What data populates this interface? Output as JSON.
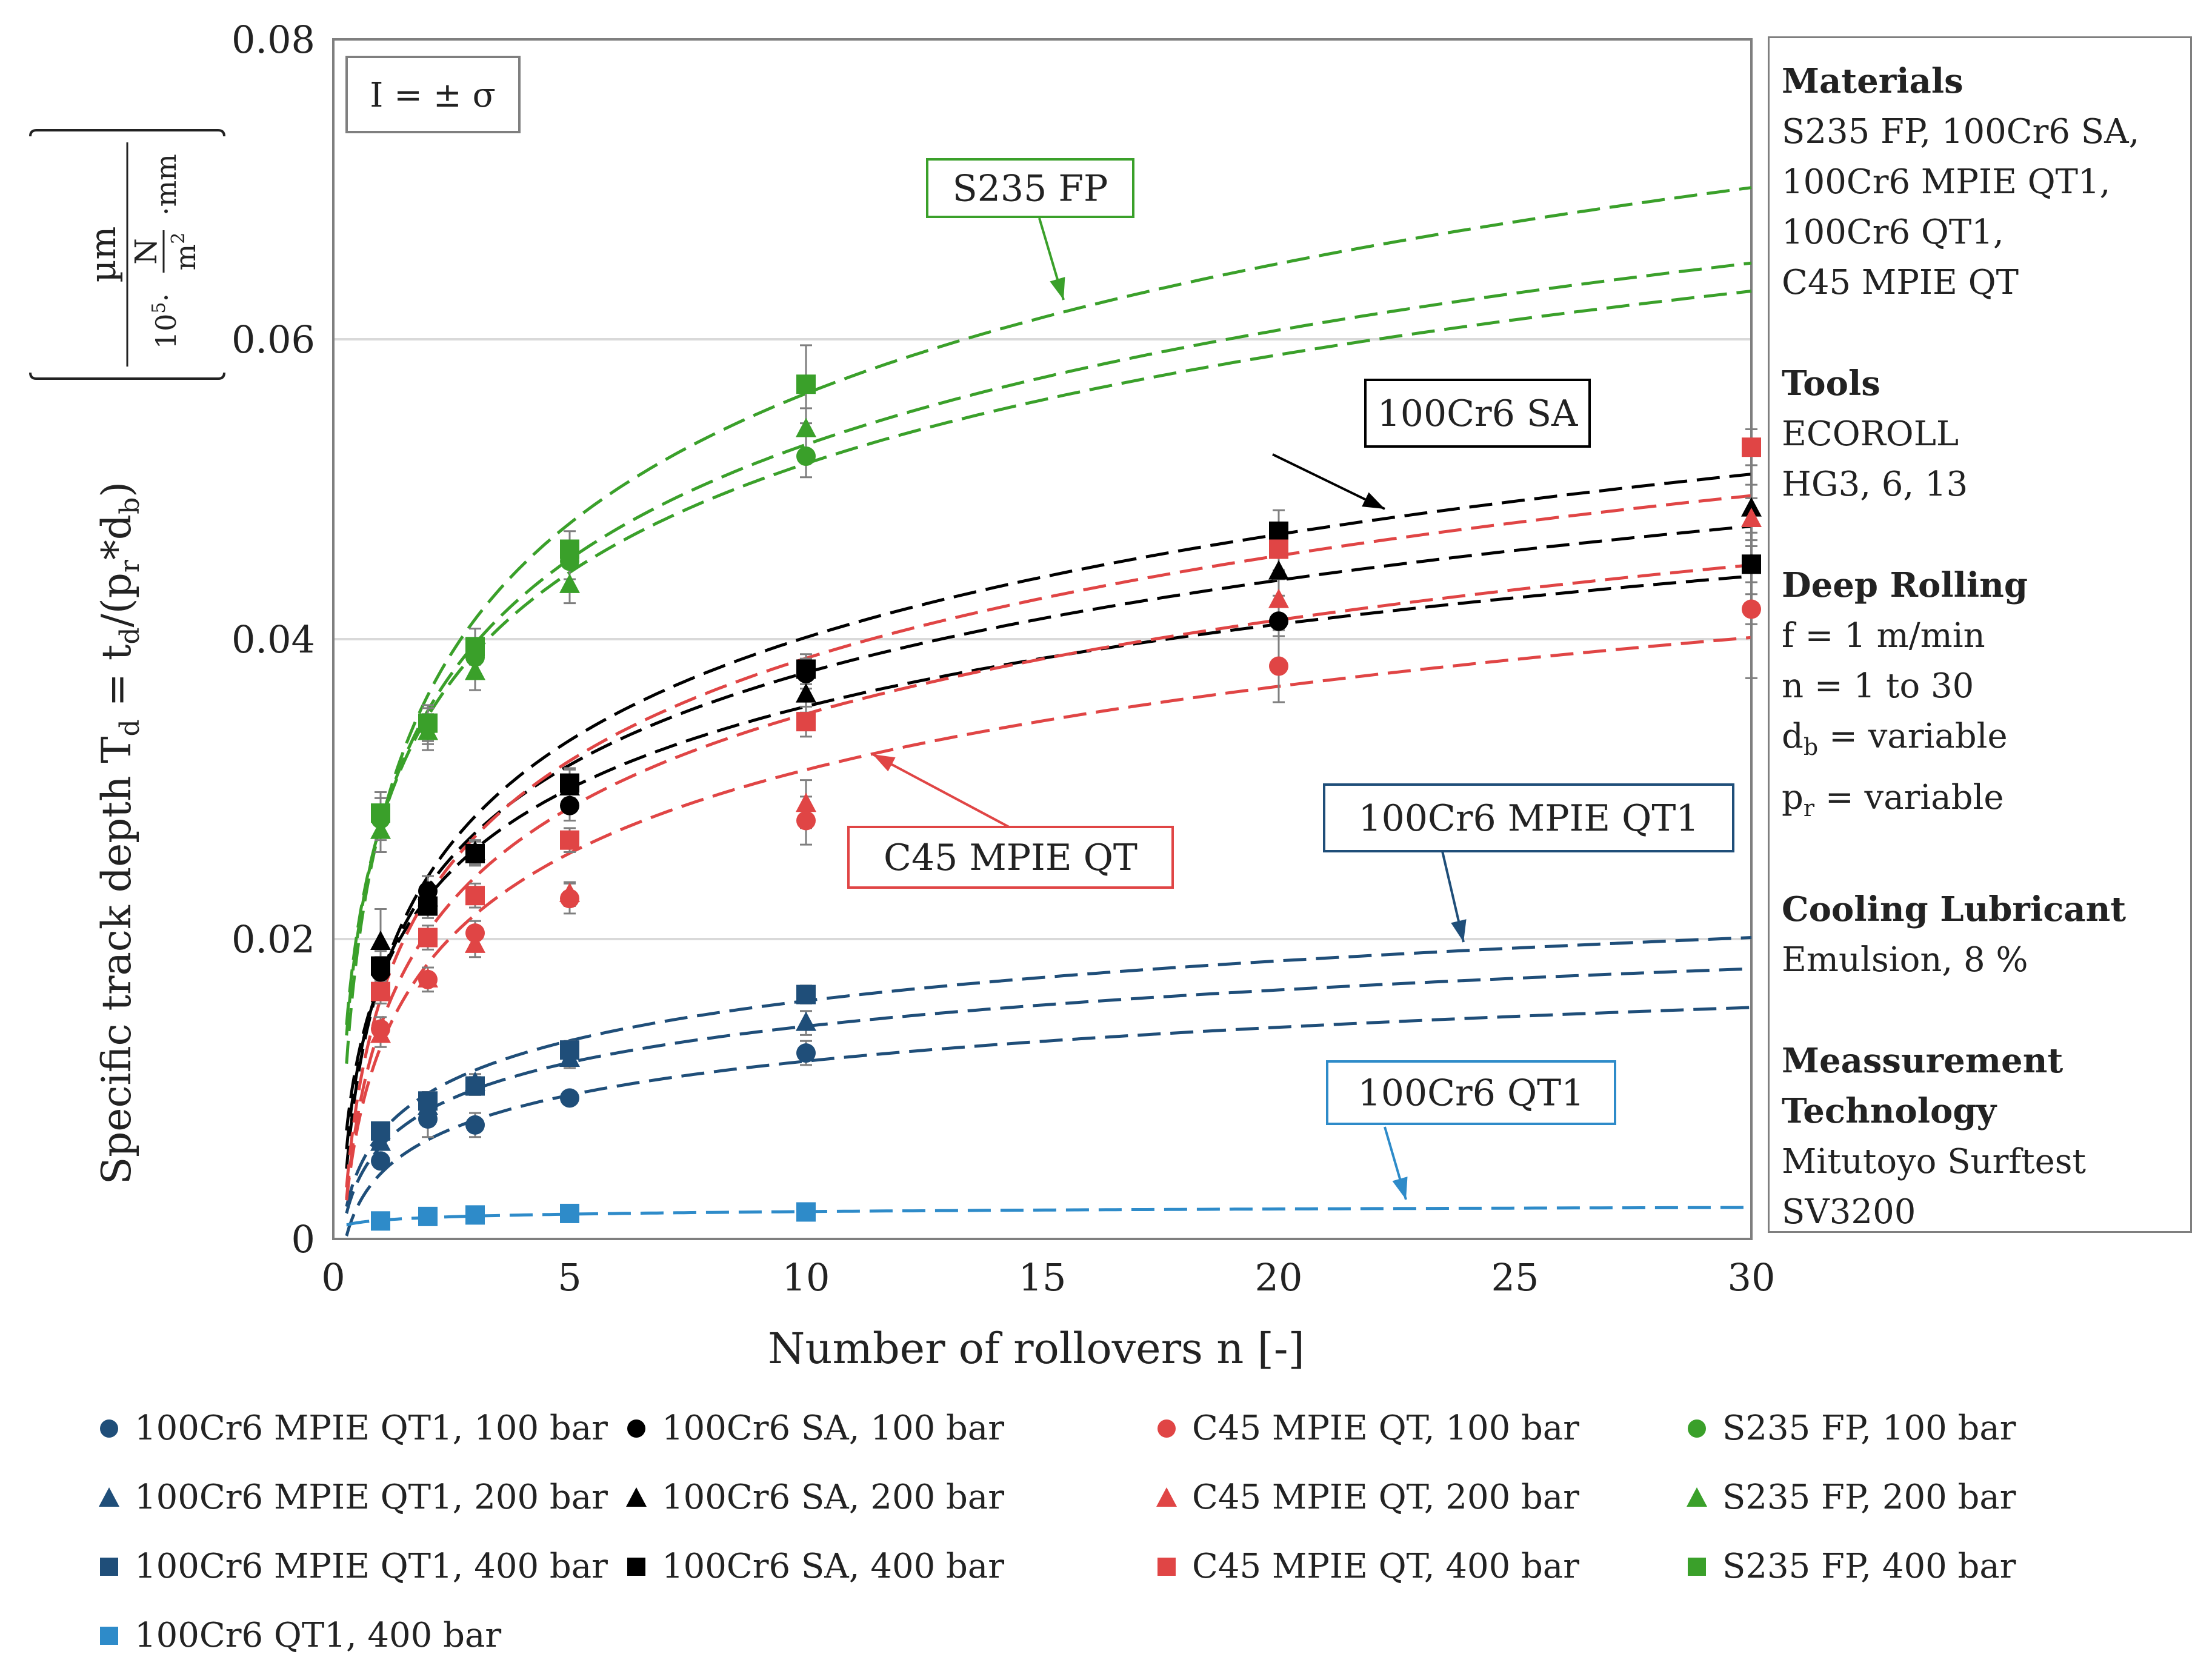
{
  "chart_data": {
    "type": "scatter",
    "title": "",
    "xlabel": "Number of rollovers n [-]",
    "ylabel": "Specific track depth T_d = t_d/(p_r*d_b)",
    "ylabel_parts": {
      "main": "Specific track depth T",
      "sub_d": "d",
      "eq": " = t",
      "sub_d2": "d",
      "tail": "/(p",
      "sub_r": "r",
      "star": "*d",
      "sub_b": "b",
      "close": ")"
    },
    "unit_parts": {
      "numerator": "µm",
      "factor": "10",
      "exp": "5",
      "dot": "·",
      "N": "N",
      "m2": "m",
      "m2_exp": "2",
      "mm": "·mm"
    },
    "xlim": [
      0,
      30
    ],
    "ylim": [
      0,
      0.08
    ],
    "xticks": [
      0,
      5,
      10,
      15,
      20,
      25,
      30
    ],
    "yticks": [
      0,
      0.02,
      0.04,
      0.06,
      0.08
    ],
    "ytick_labels": [
      "0",
      "0.02",
      "0.04",
      "0.06",
      "0.08"
    ],
    "grid": "horizontal",
    "error_bar_note": "I = ± σ",
    "series": [
      {
        "name": "100Cr6 MPIE QT1, 100 bar",
        "color": "#1f4e79",
        "marker": "circle",
        "x": [
          1,
          2,
          3,
          5,
          10
        ],
        "y": [
          0.0052,
          0.008,
          0.0076,
          0.0094,
          0.0124
        ],
        "err": [
          0.0004,
          0.0012,
          0.0008,
          0.0004,
          0.0008
        ],
        "fit": {
          "a": 0.00435,
          "b": 0.00326
        }
      },
      {
        "name": "100Cr6 MPIE QT1, 200 bar",
        "color": "#1f4e79",
        "marker": "triangle",
        "x": [
          1,
          2,
          3,
          5,
          10
        ],
        "y": [
          0.0064,
          0.0088,
          0.0104,
          0.012,
          0.0144
        ],
        "err": [
          0.0004,
          0.0006,
          0.0006,
          0.0006,
          0.0008
        ],
        "fit": {
          "a": 0.00615,
          "b": 0.00349
        }
      },
      {
        "name": "100Cr6 MPIE QT1, 400 bar",
        "color": "#1f4e79",
        "marker": "square",
        "x": [
          1,
          2,
          3,
          5,
          10
        ],
        "y": [
          0.0072,
          0.0092,
          0.0102,
          0.0126,
          0.0163
        ],
        "err": [
          0.0004,
          0.0006,
          0.0006,
          0.0006,
          0.0006
        ],
        "fit": {
          "a": 0.00704,
          "b": 0.00384
        }
      },
      {
        "name": "100Cr6 QT1, 400 bar",
        "color": "#2e8bc9",
        "marker": "square",
        "x": [
          1,
          2,
          3,
          5,
          10
        ],
        "y": [
          0.0012,
          0.0015,
          0.0016,
          0.0017,
          0.0018
        ],
        "err": [
          0.0002,
          0.0002,
          0.0002,
          0.0002,
          0.0002
        ],
        "fit": {
          "a": 0.00125,
          "b": 0.00025
        }
      },
      {
        "name": "100Cr6 SA, 100 bar",
        "color": "#000000",
        "marker": "circle",
        "x": [
          1,
          2,
          3,
          5,
          10,
          20,
          30
        ],
        "y": [
          0.0178,
          0.0232,
          0.0257,
          0.0289,
          0.0377,
          0.0412,
          0.045
        ],
        "err": [
          0.001,
          0.001,
          0.0008,
          0.001,
          0.001,
          0.001,
          0.0012
        ],
        "fit": {
          "a": 0.0173,
          "b": 0.00791
        }
      },
      {
        "name": "100Cr6 SA, 200 bar",
        "color": "#000000",
        "marker": "triangle",
        "x": [
          1,
          2,
          3,
          5,
          10,
          20,
          30
        ],
        "y": [
          0.0198,
          0.0227,
          0.0258,
          0.0301,
          0.0363,
          0.0445,
          0.0487
        ],
        "err": [
          0.0022,
          0.001,
          0.0008,
          0.0012,
          0.0012,
          0.0016,
          0.0016
        ],
        "fit": {
          "a": 0.0173,
          "b": 0.00889
        }
      },
      {
        "name": "100Cr6 SA, 400 bar",
        "color": "#000000",
        "marker": "square",
        "x": [
          1,
          2,
          3,
          5,
          10,
          20,
          30
        ],
        "y": [
          0.0182,
          0.0222,
          0.0257,
          0.0304,
          0.038,
          0.0472,
          0.045
        ],
        "err": [
          0.001,
          0.0008,
          0.0008,
          0.001,
          0.001,
          0.0014,
          0.0076
        ],
        "fit": {
          "a": 0.0173,
          "b": 0.00991
        }
      },
      {
        "name": "C45 MPIE QT, 100 bar",
        "color": "#e04545",
        "marker": "circle",
        "x": [
          1,
          2,
          3,
          5,
          10,
          20,
          30
        ],
        "y": [
          0.014,
          0.0173,
          0.0204,
          0.0227,
          0.0279,
          0.0382,
          0.042
        ],
        "err": [
          0.0008,
          0.0008,
          0.0008,
          0.001,
          0.0016,
          0.0024,
          0.001
        ],
        "fit": {
          "a": 0.0128,
          "b": 0.00803
        }
      },
      {
        "name": "C45 MPIE QT, 200 bar",
        "color": "#e04545",
        "marker": "triangle",
        "x": [
          1,
          2,
          3,
          5,
          10,
          20,
          30
        ],
        "y": [
          0.0136,
          0.0173,
          0.0196,
          0.023,
          0.029,
          0.0426,
          0.048
        ],
        "err": [
          0.0008,
          0.0008,
          0.0008,
          0.0008,
          0.0016,
          0.0014,
          0.0014
        ],
        "fit": {
          "a": 0.0142,
          "b": 0.00904
        }
      },
      {
        "name": "C45 MPIE QT, 400 bar",
        "color": "#e04545",
        "marker": "square",
        "x": [
          1,
          2,
          3,
          5,
          10,
          20,
          30
        ],
        "y": [
          0.0165,
          0.0201,
          0.0229,
          0.0266,
          0.0345,
          0.046,
          0.0528
        ],
        "err": [
          0.0008,
          0.0008,
          0.0008,
          0.0008,
          0.001,
          0.0014,
          0.0012
        ],
        "fit": {
          "a": 0.016,
          "b": 0.00987
        }
      },
      {
        "name": "S235 FP, 100 bar",
        "color": "#3aa02a",
        "marker": "circle",
        "x": [
          1,
          2,
          3,
          5,
          10
        ],
        "y": [
          0.028,
          0.0342,
          0.0388,
          0.0452,
          0.0522
        ],
        "err": [
          0.0014,
          0.0012,
          0.0012,
          0.0012,
          0.0014
        ],
        "fit": {
          "a": 0.0276,
          "b": 0.01047
        }
      },
      {
        "name": "S235 FP, 200 bar",
        "color": "#3aa02a",
        "marker": "triangle",
        "x": [
          1,
          2,
          3,
          5,
          10
        ],
        "y": [
          0.0272,
          0.0338,
          0.0378,
          0.0436,
          0.054
        ],
        "err": [
          0.0014,
          0.0012,
          0.0012,
          0.0012,
          0.0014
        ],
        "fit": {
          "a": 0.0276,
          "b": 0.01102
        }
      },
      {
        "name": "S235 FP, 400 bar",
        "color": "#3aa02a",
        "marker": "square",
        "x": [
          1,
          2,
          3,
          5,
          10
        ],
        "y": [
          0.0284,
          0.0344,
          0.0395,
          0.046,
          0.057
        ],
        "err": [
          0.0014,
          0.0012,
          0.0012,
          0.0012,
          0.0026
        ],
        "fit": {
          "a": 0.0276,
          "b": 0.0125
        }
      }
    ],
    "annotations": [
      {
        "text": "S235 FP",
        "color": "#3aa02a"
      },
      {
        "text": "100Cr6 SA",
        "color": "#000000"
      },
      {
        "text": "C45 MPIE QT",
        "color": "#e04545"
      },
      {
        "text": "100Cr6 MPIE QT1",
        "color": "#1f4e79"
      },
      {
        "text": "100Cr6 QT1",
        "color": "#2e8bc9"
      }
    ]
  },
  "info_panel": {
    "materials_heading": "Materials",
    "materials_lines": [
      "S235 FP, 100Cr6 SA,",
      "100Cr6 MPIE QT1,",
      "100Cr6 QT1,",
      "C45 MPIE QT"
    ],
    "tools_heading": "Tools",
    "tools_lines": [
      "ECOROLL",
      "HG3, 6, 13"
    ],
    "rolling_heading": "Deep Rolling",
    "rolling_f": "f = 1 m/min",
    "rolling_n": "n = 1 to 30",
    "rolling_db_sym": "d",
    "rolling_db_sub": "b",
    "rolling_db_rest": " = variable",
    "rolling_pr_sym": "p",
    "rolling_pr_sub": "r",
    "rolling_pr_rest": " = variable",
    "cooling_heading": "Cooling Lubricant",
    "cooling_value": "Emulsion, 8 %",
    "measurement_heading_1": "Meassurement",
    "measurement_heading_2": "Technology",
    "measurement_lines": [
      "Mitutoyo Surftest",
      "SV3200"
    ]
  }
}
